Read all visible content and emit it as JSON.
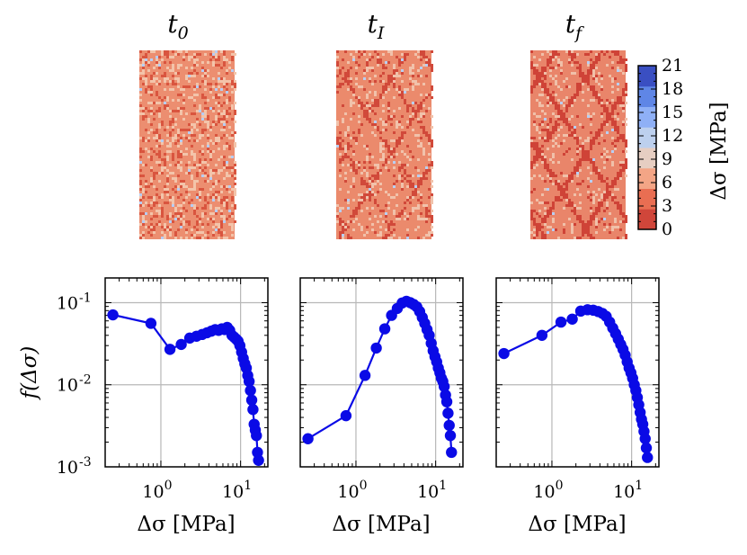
{
  "figure": {
    "panel_titles": [
      "t",
      "t",
      "t"
    ],
    "panel_title_subscripts": [
      "0",
      "I",
      "f"
    ]
  },
  "colorbar": {
    "label": "Δσ [MPa]",
    "ticks": [
      "0",
      "3",
      "6",
      "9",
      "12",
      "15",
      "18",
      "21"
    ],
    "range": [
      0,
      21
    ],
    "colors": [
      "#d0463a",
      "#e96e52",
      "#f3a586",
      "#e6cec2",
      "#bdd0ee",
      "#8fb0f6",
      "#5f86e6",
      "#3a4fc2"
    ]
  },
  "colors": {
    "series": "#0a0ae6",
    "grid": "#b8b8b8"
  },
  "maps": [
    {
      "name": "t0",
      "base": "#ec8e70",
      "light": "#f3c4aa",
      "dark": "#d9553f",
      "blue": "#b7cdf3",
      "band_strength": 0.05,
      "dark_frac": 0.18,
      "light_frac": 0.18,
      "blue_frac": 0.015
    },
    {
      "name": "tI",
      "base": "#eb8a6c",
      "light": "#f1c2ab",
      "dark": "#d1493a",
      "blue": "#b9cff1",
      "band_strength": 0.55,
      "dark_frac": 0.07,
      "light_frac": 0.14,
      "blue_frac": 0.01
    },
    {
      "name": "tf",
      "base": "#e9856a",
      "light": "#f0c0a9",
      "dark": "#cf4337",
      "blue": "#b8cff4",
      "band_strength": 0.9,
      "dark_frac": 0.06,
      "light_frac": 0.13,
      "blue_frac": 0.012
    }
  ],
  "chart_data": [
    {
      "type": "line",
      "title": "t0",
      "xlabel": "Δσ [MPa]",
      "ylabel": "f(Δσ)",
      "xscale": "log",
      "yscale": "log",
      "xlim": [
        0.2,
        22
      ],
      "ylim": [
        0.001,
        0.2
      ],
      "xticks": [
        {
          "value": 1,
          "label": "10",
          "exp": "0"
        },
        {
          "value": 10,
          "label": "10",
          "exp": "1"
        }
      ],
      "yticks": [
        {
          "value": 0.001,
          "label": "10",
          "exp": "-3"
        },
        {
          "value": 0.01,
          "label": "10",
          "exp": "-2"
        },
        {
          "value": 0.1,
          "label": "10",
          "exp": "-1"
        }
      ],
      "grid": true,
      "series": [
        {
          "x": [
            0.25,
            0.75,
            1.3,
            1.8,
            2.3,
            2.8,
            3.3,
            3.8,
            4.3,
            4.8,
            5.3,
            5.8,
            6.3,
            6.8,
            7.3,
            7.8,
            8.3,
            8.8,
            9.3,
            9.8,
            10.3,
            10.8,
            11.3,
            11.8,
            12.3,
            12.8,
            13.3,
            13.8,
            14.3,
            14.8,
            15.3,
            15.8,
            16.3,
            16.8
          ],
          "y": [
            0.071,
            0.056,
            0.027,
            0.031,
            0.037,
            0.039,
            0.041,
            0.043,
            0.045,
            0.047,
            0.046,
            0.048,
            0.047,
            0.05,
            0.046,
            0.04,
            0.038,
            0.036,
            0.034,
            0.03,
            0.025,
            0.021,
            0.018,
            0.016,
            0.013,
            0.011,
            0.0085,
            0.0065,
            0.005,
            0.0033,
            0.0028,
            0.0024,
            0.0015,
            0.0012
          ]
        }
      ]
    },
    {
      "type": "line",
      "title": "tI",
      "xlabel": "Δσ [MPa]",
      "ylabel": "",
      "xscale": "log",
      "yscale": "log",
      "xlim": [
        0.2,
        22
      ],
      "ylim": [
        0.001,
        0.2
      ],
      "xticks": [
        {
          "value": 1,
          "label": "10",
          "exp": "0"
        },
        {
          "value": 10,
          "label": "10",
          "exp": "1"
        }
      ],
      "yticks": [],
      "grid": true,
      "series": [
        {
          "x": [
            0.25,
            0.75,
            1.3,
            1.8,
            2.3,
            2.8,
            3.3,
            3.8,
            4.3,
            4.8,
            5.3,
            5.8,
            6.3,
            6.8,
            7.3,
            7.8,
            8.3,
            8.8,
            9.3,
            9.8,
            10.3,
            10.8,
            11.3,
            11.8,
            12.3,
            12.8,
            13.3,
            13.8,
            14.3,
            14.8,
            15.3,
            15.8
          ],
          "y": [
            0.0022,
            0.0042,
            0.013,
            0.028,
            0.048,
            0.07,
            0.085,
            0.099,
            0.104,
            0.1,
            0.095,
            0.089,
            0.078,
            0.066,
            0.056,
            0.047,
            0.04,
            0.032,
            0.026,
            0.022,
            0.019,
            0.016,
            0.014,
            0.012,
            0.011,
            0.0095,
            0.0075,
            0.0062,
            0.0045,
            0.0032,
            0.0024,
            0.0015
          ]
        }
      ]
    },
    {
      "type": "line",
      "title": "tf",
      "xlabel": "Δσ [MPa]",
      "ylabel": "",
      "xscale": "log",
      "yscale": "log",
      "xlim": [
        0.2,
        22
      ],
      "ylim": [
        0.001,
        0.2
      ],
      "xticks": [
        {
          "value": 1,
          "label": "10",
          "exp": "0"
        },
        {
          "value": 10,
          "label": "10",
          "exp": "1"
        }
      ],
      "yticks": [],
      "grid": true,
      "series": [
        {
          "x": [
            0.25,
            0.75,
            1.3,
            1.8,
            2.3,
            2.8,
            3.3,
            3.8,
            4.3,
            4.8,
            5.3,
            5.8,
            6.3,
            6.8,
            7.3,
            7.8,
            8.3,
            8.8,
            9.3,
            9.8,
            10.3,
            10.8,
            11.3,
            11.8,
            12.3,
            12.8,
            13.3,
            13.8,
            14.3,
            14.8,
            15.3,
            15.8
          ],
          "y": [
            0.024,
            0.04,
            0.058,
            0.063,
            0.079,
            0.082,
            0.081,
            0.078,
            0.074,
            0.068,
            0.058,
            0.049,
            0.042,
            0.036,
            0.031,
            0.027,
            0.023,
            0.019,
            0.016,
            0.014,
            0.012,
            0.01,
            0.0085,
            0.007,
            0.0057,
            0.0046,
            0.0038,
            0.0033,
            0.0027,
            0.0022,
            0.0017,
            0.0013
          ]
        }
      ]
    }
  ]
}
